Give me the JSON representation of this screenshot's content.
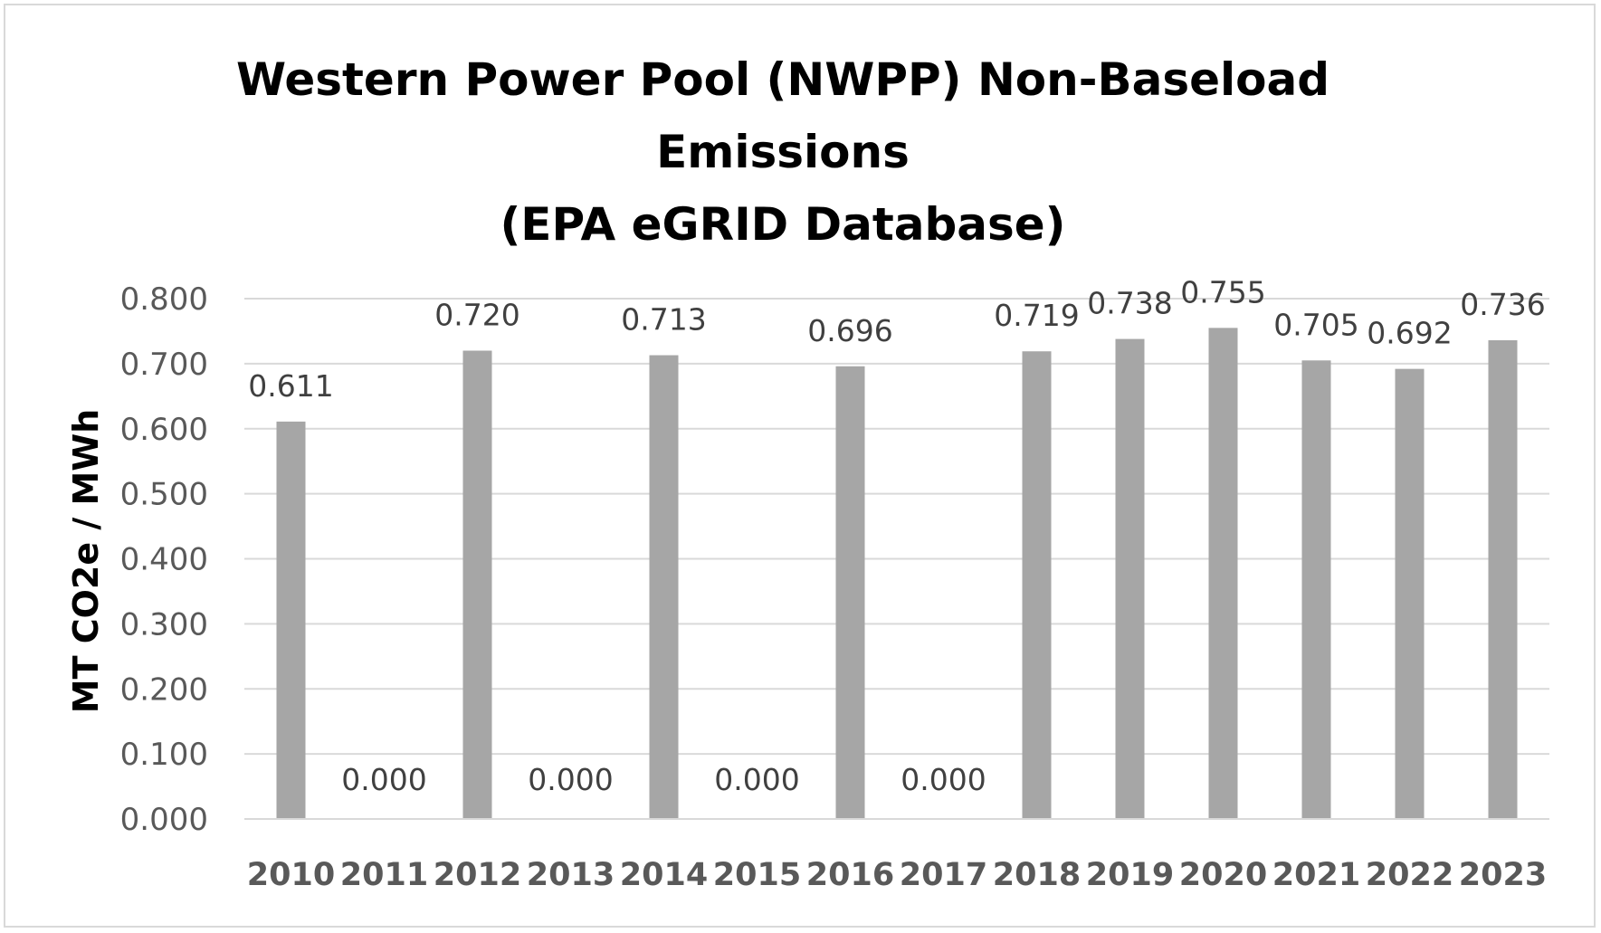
{
  "chart_data": {
    "type": "bar",
    "title_lines": [
      "Western Power Pool (NWPP) Non-Baseload",
      "Emissions",
      "(EPA eGRID Database)"
    ],
    "xlabel": "",
    "ylabel": "MT CO2e / MWh",
    "ylim": [
      0,
      0.8
    ],
    "yticks": [
      "0.000",
      "0.100",
      "0.200",
      "0.300",
      "0.400",
      "0.500",
      "0.600",
      "0.700",
      "0.800"
    ],
    "grid": true,
    "categories": [
      "2010",
      "2011",
      "2012",
      "2013",
      "2014",
      "2015",
      "2016",
      "2017",
      "2018",
      "2019",
      "2020",
      "2021",
      "2022",
      "2023"
    ],
    "values": [
      0.611,
      0.0,
      0.72,
      0.0,
      0.713,
      0.0,
      0.696,
      0.0,
      0.719,
      0.738,
      0.755,
      0.705,
      0.692,
      0.736
    ],
    "data_labels": [
      "0.611",
      "0.000",
      "0.720",
      "0.000",
      "0.713",
      "0.000",
      "0.696",
      "0.000",
      "0.719",
      "0.738",
      "0.755",
      "0.705",
      "0.692",
      "0.736"
    ],
    "bar_color": "#a6a6a6",
    "grid_color": "#d9d9d9"
  }
}
